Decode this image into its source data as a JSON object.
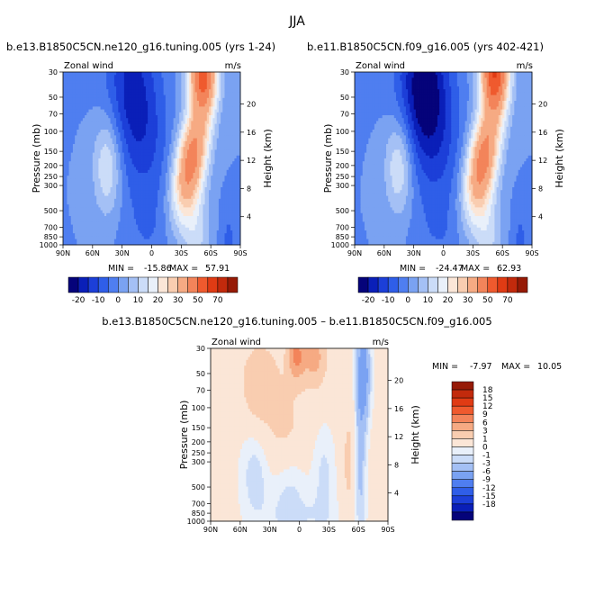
{
  "page": {
    "season": "JJA",
    "diff_title": "b.e13.B1850C5CN.ne120_g16.tuning.005 – b.e11.B1850C5CN.f09_g16.005"
  },
  "chart_data": [
    {
      "type": "heatmap",
      "title": "b.e13.B1850C5CN.ne120_g16.tuning.005 (yrs 1-24)",
      "left_label": "Zonal wind",
      "units": "m/s",
      "ylabel": "Pressure (mb)",
      "y2label": "Height (km)",
      "x_ticks": [
        "90N",
        "60N",
        "30N",
        "0",
        "30S",
        "60S",
        "90S"
      ],
      "y_ticks": [
        "30",
        "50",
        "70",
        "100",
        "150",
        "200",
        "250",
        "300",
        "500",
        "700",
        "850",
        "1000"
      ],
      "y2_ticks": [
        "4",
        "8",
        "12",
        "16",
        "20"
      ],
      "xlim": [
        90,
        -90
      ],
      "ylim": [
        1000,
        30
      ],
      "min_label": "MIN =",
      "min": "-15.86",
      "max_label": "MAX =",
      "max": "57.91",
      "field": {
        "eastward_jet": {
          "lat": -40,
          "p": 180,
          "peak": 45
        },
        "upper_eastward_jet": {
          "lat": -52,
          "p": 30,
          "peak": 58
        },
        "easterly_core": {
          "lat": 20,
          "p": 40,
          "min": -16
        },
        "westerly_max_nh": {
          "lat": 45,
          "p": 200,
          "peak": 16
        }
      }
    },
    {
      "type": "heatmap",
      "title": "b.e11.B1850C5CN.f09_g16.005 (yrs 402-421)",
      "left_label": "Zonal wind",
      "units": "m/s",
      "ylabel": "Pressure (mb)",
      "y2label": "Height (km)",
      "x_ticks": [
        "90N",
        "60N",
        "30N",
        "0",
        "30S",
        "60S",
        "90S"
      ],
      "y_ticks": [
        "30",
        "50",
        "70",
        "100",
        "150",
        "200",
        "250",
        "300",
        "500",
        "700",
        "850",
        "1000"
      ],
      "y2_ticks": [
        "4",
        "8",
        "12",
        "16",
        "20"
      ],
      "xlim": [
        90,
        -90
      ],
      "ylim": [
        1000,
        30
      ],
      "min_label": "MIN =",
      "min": "-24.47",
      "max_label": "MAX =",
      "max": "62.93",
      "field": {
        "eastward_jet": {
          "lat": -40,
          "p": 180,
          "peak": 45
        },
        "upper_eastward_jet": {
          "lat": -52,
          "p": 30,
          "peak": 63
        },
        "easterly_core": {
          "lat": 20,
          "p": 40,
          "min": -24
        },
        "westerly_max_nh": {
          "lat": 45,
          "p": 200,
          "peak": 16
        }
      }
    },
    {
      "type": "heatmap",
      "title": "b.e13.B1850C5CN.ne120_g16.tuning.005 – b.e11.B1850C5CN.f09_g16.005",
      "left_label": "Zonal wind",
      "units": "m/s",
      "ylabel": "Pressure (mb)",
      "y2label": "Height (km)",
      "x_ticks": [
        "90N",
        "60N",
        "30N",
        "0",
        "30S",
        "60S",
        "90S"
      ],
      "y_ticks": [
        "30",
        "50",
        "70",
        "100",
        "150",
        "200",
        "250",
        "300",
        "500",
        "700",
        "850",
        "1000"
      ],
      "y2_ticks": [
        "4",
        "8",
        "12",
        "16",
        "20"
      ],
      "xlim": [
        90,
        -90
      ],
      "ylim": [
        1000,
        30
      ],
      "min_label": "MIN =",
      "min": "-7.97",
      "max_label": "MAX =",
      "max": "10.05"
    }
  ],
  "colorbar_abs": {
    "labels": [
      "-20",
      "-10",
      "0",
      "10",
      "20",
      "30",
      "50",
      "70"
    ],
    "colors": [
      "#05037a",
      "#0a1fb8",
      "#1c3fd8",
      "#2f5ee8",
      "#4f7ef0",
      "#7aa2f2",
      "#a4c0f5",
      "#cbdcf8",
      "#e9f0fa",
      "#fbe6d7",
      "#f9cdb0",
      "#f6aa83",
      "#f3845a",
      "#ef5a2e",
      "#e03b14",
      "#c22a0c",
      "#961a06"
    ]
  },
  "colorbar_diff": {
    "labels": [
      "18",
      "15",
      "12",
      "9",
      "6",
      "3",
      "1",
      "0",
      "-1",
      "-3",
      "-6",
      "-9",
      "-12",
      "-15",
      "-18"
    ],
    "colors": [
      "#961a06",
      "#c22a0c",
      "#e03b14",
      "#ef5a2e",
      "#f3845a",
      "#f6aa83",
      "#f9cdb0",
      "#fbe6d7",
      "#e9f0fa",
      "#cbdcf8",
      "#a4c0f5",
      "#7aa2f2",
      "#4f7ef0",
      "#2f5ee8",
      "#1c3fd8",
      "#0a1fb8",
      "#05037a"
    ]
  }
}
